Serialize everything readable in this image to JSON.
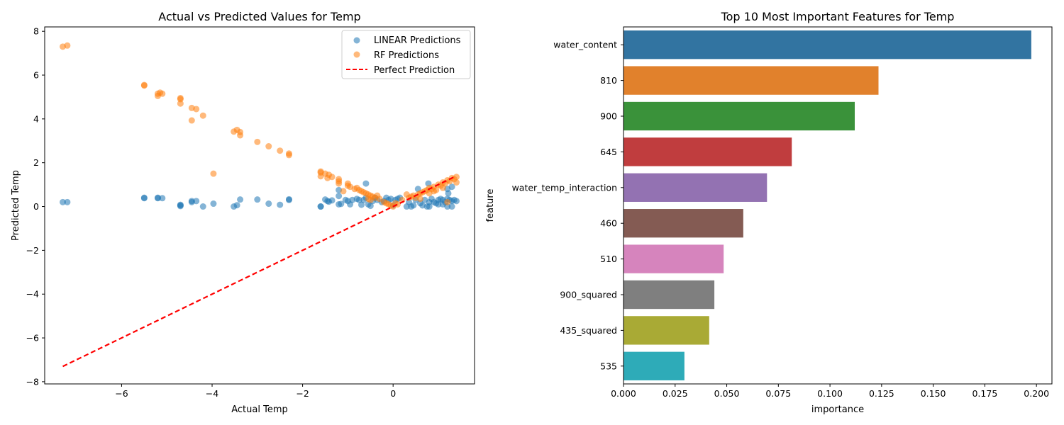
{
  "chart_data": [
    {
      "type": "scatter",
      "title": "Actual vs Predicted Values for Temp",
      "xlabel": "Actual Temp",
      "ylabel": "Predicted Temp",
      "xlim": [
        -7.7,
        1.8
      ],
      "ylim": [
        -8.1,
        8.2
      ],
      "xticks": [
        -6,
        -4,
        -2,
        0
      ],
      "yticks": [
        -8,
        -6,
        -4,
        -2,
        0,
        2,
        4,
        6,
        8
      ],
      "grid": false,
      "legend_position": "upper right",
      "legend": [
        "LINEAR Predictions",
        "RF Predictions",
        "Perfect Prediction"
      ],
      "series": [
        {
          "name": "LINEAR Predictions",
          "color": "#1f77b4",
          "points": [
            [
              -7.3,
              0.2
            ],
            [
              -7.2,
              0.2
            ],
            [
              -5.5,
              0.38
            ],
            [
              -5.5,
              0.4
            ],
            [
              -5.2,
              0.38
            ],
            [
              -5.2,
              0.4
            ],
            [
              -5.1,
              0.38
            ],
            [
              -4.7,
              0.02
            ],
            [
              -4.7,
              0.08
            ],
            [
              -4.7,
              0.05
            ],
            [
              -4.45,
              0.2
            ],
            [
              -4.45,
              0.25
            ],
            [
              -4.35,
              0.25
            ],
            [
              -4.2,
              0.0
            ],
            [
              -3.97,
              0.13
            ],
            [
              -3.52,
              0.0
            ],
            [
              -3.45,
              0.06
            ],
            [
              -3.38,
              0.32
            ],
            [
              -3.0,
              0.32
            ],
            [
              -2.75,
              0.13
            ],
            [
              -2.5,
              0.08
            ],
            [
              -2.3,
              0.3
            ],
            [
              -2.3,
              0.33
            ],
            [
              -1.6,
              0.0
            ],
            [
              -1.6,
              0.0
            ],
            [
              -1.5,
              0.32
            ],
            [
              -1.45,
              0.25
            ],
            [
              -1.42,
              0.22
            ],
            [
              -1.35,
              0.28
            ],
            [
              -1.2,
              0.1
            ],
            [
              -1.2,
              0.48
            ],
            [
              -1.2,
              0.75
            ],
            [
              -1.15,
              0.12
            ],
            [
              -1.05,
              0.3
            ],
            [
              -1.0,
              0.25
            ],
            [
              -0.95,
              0.1
            ],
            [
              -0.9,
              0.3
            ],
            [
              -0.8,
              0.35
            ],
            [
              -0.75,
              0.3
            ],
            [
              -0.7,
              0.08
            ],
            [
              -0.65,
              0.3
            ],
            [
              -0.6,
              1.05
            ],
            [
              -0.6,
              0.4
            ],
            [
              -0.55,
              0.1
            ],
            [
              -0.5,
              0.03
            ],
            [
              -0.45,
              0.25
            ],
            [
              -0.4,
              0.4
            ],
            [
              -0.35,
              0.3
            ],
            [
              -0.25,
              0.2
            ],
            [
              -0.2,
              0.25
            ],
            [
              -0.15,
              0.4
            ],
            [
              -0.1,
              0.3
            ],
            [
              -0.05,
              0.35
            ],
            [
              0.0,
              0.05
            ],
            [
              0.05,
              0.3
            ],
            [
              0.1,
              0.35
            ],
            [
              0.15,
              0.4
            ],
            [
              0.3,
              0.0
            ],
            [
              0.35,
              0.2
            ],
            [
              0.4,
              0.0
            ],
            [
              0.45,
              0.05
            ],
            [
              0.5,
              0.3
            ],
            [
              0.55,
              0.8
            ],
            [
              0.6,
              0.15
            ],
            [
              0.65,
              0.05
            ],
            [
              0.7,
              0.3
            ],
            [
              0.75,
              0.0
            ],
            [
              0.78,
              1.05
            ],
            [
              0.8,
              0.2
            ],
            [
              0.8,
              0.0
            ],
            [
              0.85,
              0.35
            ],
            [
              0.9,
              0.2
            ],
            [
              0.95,
              0.15
            ],
            [
              1.0,
              0.1
            ],
            [
              1.0,
              0.3
            ],
            [
              1.05,
              0.35
            ],
            [
              1.1,
              0.1
            ],
            [
              1.1,
              0.3
            ],
            [
              1.15,
              0.2
            ],
            [
              1.2,
              0.0
            ],
            [
              1.2,
              0.35
            ],
            [
              1.22,
              0.6
            ],
            [
              1.25,
              0.3
            ],
            [
              1.3,
              0.0
            ],
            [
              1.3,
              0.25
            ],
            [
              1.35,
              0.3
            ],
            [
              1.4,
              0.25
            ],
            [
              1.2,
              0.8
            ],
            [
              1.3,
              0.9
            ]
          ]
        },
        {
          "name": "RF Predictions",
          "color": "#ff7f0e",
          "points": [
            [
              -7.3,
              7.3
            ],
            [
              -7.2,
              7.35
            ],
            [
              -5.5,
              5.52
            ],
            [
              -5.5,
              5.55
            ],
            [
              -5.2,
              5.15
            ],
            [
              -5.2,
              5.05
            ],
            [
              -5.15,
              5.2
            ],
            [
              -5.1,
              5.15
            ],
            [
              -4.7,
              4.9
            ],
            [
              -4.7,
              4.95
            ],
            [
              -4.7,
              4.7
            ],
            [
              -4.45,
              4.5
            ],
            [
              -4.45,
              3.93
            ],
            [
              -4.35,
              4.45
            ],
            [
              -4.2,
              4.15
            ],
            [
              -3.97,
              1.5
            ],
            [
              -3.52,
              3.42
            ],
            [
              -3.45,
              3.5
            ],
            [
              -3.38,
              3.25
            ],
            [
              -3.38,
              3.4
            ],
            [
              -3.0,
              2.95
            ],
            [
              -2.75,
              2.75
            ],
            [
              -2.5,
              2.55
            ],
            [
              -2.3,
              2.35
            ],
            [
              -2.3,
              2.42
            ],
            [
              -1.6,
              1.6
            ],
            [
              -1.6,
              1.38
            ],
            [
              -1.6,
              1.55
            ],
            [
              -1.5,
              1.5
            ],
            [
              -1.45,
              1.3
            ],
            [
              -1.42,
              1.45
            ],
            [
              -1.35,
              1.35
            ],
            [
              -1.2,
              1.25
            ],
            [
              -1.2,
              1.15
            ],
            [
              -1.1,
              0.7
            ],
            [
              -1.0,
              1.05
            ],
            [
              -1.0,
              0.95
            ],
            [
              -0.95,
              0.9
            ],
            [
              -0.85,
              0.8
            ],
            [
              -0.8,
              0.85
            ],
            [
              -0.75,
              0.75
            ],
            [
              -0.7,
              0.7
            ],
            [
              -0.65,
              0.65
            ],
            [
              -0.6,
              0.6
            ],
            [
              -0.55,
              0.55
            ],
            [
              -0.5,
              0.5
            ],
            [
              -0.5,
              0.3
            ],
            [
              -0.45,
              0.45
            ],
            [
              -0.4,
              0.4
            ],
            [
              -0.35,
              0.5
            ],
            [
              -0.3,
              0.35
            ],
            [
              -0.2,
              0.2
            ],
            [
              -0.15,
              0.15
            ],
            [
              -0.1,
              0.1
            ],
            [
              -0.05,
              0.05
            ],
            [
              0.0,
              0.0
            ],
            [
              0.05,
              0.15
            ],
            [
              0.1,
              0.1
            ],
            [
              0.2,
              0.3
            ],
            [
              0.3,
              0.55
            ],
            [
              0.35,
              0.4
            ],
            [
              0.4,
              0.45
            ],
            [
              0.45,
              0.5
            ],
            [
              0.5,
              0.4
            ],
            [
              0.55,
              0.55
            ],
            [
              0.6,
              0.6
            ],
            [
              0.65,
              0.65
            ],
            [
              0.7,
              0.7
            ],
            [
              0.75,
              0.75
            ],
            [
              0.8,
              0.6
            ],
            [
              0.8,
              0.85
            ],
            [
              0.85,
              0.8
            ],
            [
              0.9,
              0.9
            ],
            [
              0.95,
              0.75
            ],
            [
              1.0,
              1.0
            ],
            [
              1.05,
              0.95
            ],
            [
              1.1,
              1.1
            ],
            [
              1.15,
              1.05
            ],
            [
              1.2,
              1.2
            ],
            [
              1.2,
              0.2
            ],
            [
              1.25,
              1.15
            ],
            [
              1.3,
              1.3
            ],
            [
              1.35,
              1.25
            ],
            [
              1.4,
              1.35
            ],
            [
              1.4,
              1.1
            ],
            [
              1.1,
              0.85
            ],
            [
              0.9,
              0.7
            ],
            [
              -1.2,
              1.05
            ],
            [
              -0.55,
              0.35
            ],
            [
              0.6,
              0.35
            ]
          ]
        }
      ],
      "reference_line": {
        "name": "Perfect Prediction",
        "color": "#ff0000",
        "from": [
          -7.3,
          -7.3
        ],
        "to": [
          1.35,
          1.35
        ]
      }
    },
    {
      "type": "bar",
      "orientation": "horizontal",
      "title": "Top 10 Most Important Features for Temp",
      "xlabel": "importance",
      "ylabel": "feature",
      "xlim": [
        0,
        0.2075
      ],
      "xticks": [
        "0.000",
        "0.025",
        "0.050",
        "0.075",
        "0.100",
        "0.125",
        "0.150",
        "0.175",
        "0.200"
      ],
      "grid": false,
      "categories": [
        "water_content",
        "810",
        "900",
        "645",
        "water_temp_interaction",
        "460",
        "510",
        "900_squared",
        "435_squared",
        "535"
      ],
      "values": [
        0.1975,
        0.1235,
        0.112,
        0.0815,
        0.0695,
        0.058,
        0.0485,
        0.044,
        0.0415,
        0.0295
      ],
      "colors": [
        "#3274a1",
        "#e1812c",
        "#3a923a",
        "#c03d3e",
        "#9372b2",
        "#845b53",
        "#d684bd",
        "#7f7f7f",
        "#a9aa35",
        "#2eabb8"
      ]
    }
  ]
}
